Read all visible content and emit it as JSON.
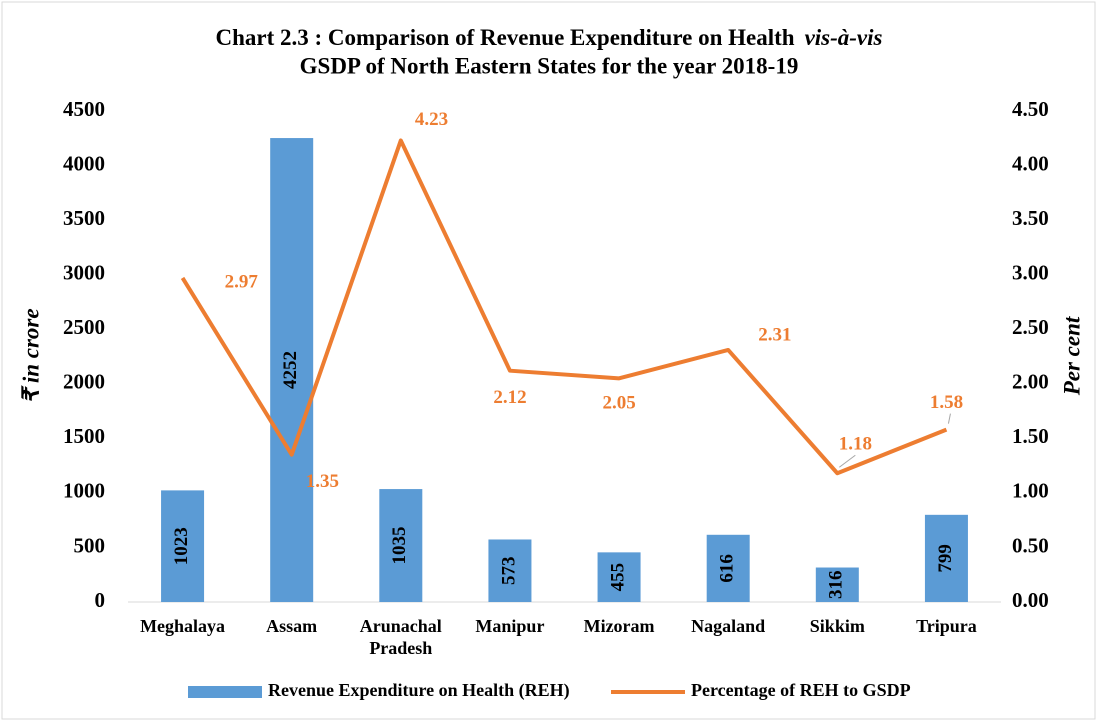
{
  "chart_data": {
    "type": "bar-line",
    "title": [
      "Chart 2.3 : Comparison of Revenue Expenditure on Health",
      "vis-à-vis",
      "GSDP of North Eastern States for the year 2018-19"
    ],
    "ylabel": "₹ in crore",
    "y2label": "Per cent",
    "categories": [
      "Meghalaya",
      "Assam",
      "Arunachal Pradesh",
      "Manipur",
      "Mizoram",
      "Nagaland",
      "Sikkim",
      "Tripura"
    ],
    "series": [
      {
        "name": "Revenue Expenditure on Health (REH)",
        "type": "bar",
        "color": "#5b9bd5",
        "values": [
          1023,
          4252,
          1035,
          573,
          455,
          616,
          316,
          799
        ]
      },
      {
        "name": "Percentage of REH to GSDP",
        "type": "line",
        "axis": "y2",
        "color": "#ed7d31",
        "values": [
          2.97,
          1.35,
          4.23,
          2.12,
          2.05,
          2.31,
          1.18,
          1.58
        ]
      }
    ],
    "ylim": [
      0,
      4500
    ],
    "yticks": [
      0,
      500,
      1000,
      1500,
      2000,
      2500,
      3000,
      3500,
      4000,
      4500
    ],
    "y2lim": [
      0,
      4.5
    ],
    "y2ticks": [
      {
        "value": 0,
        "label": "0.00"
      },
      {
        "value": 0.5,
        "label": "0.50"
      },
      {
        "value": 1,
        "label": "1.00"
      },
      {
        "value": 1.5,
        "label": "1.50"
      },
      {
        "value": 2,
        "label": "2.00"
      },
      {
        "value": 2.5,
        "label": "2.50"
      },
      {
        "value": 3,
        "label": "3.00"
      },
      {
        "value": 3.5,
        "label": "3.50"
      },
      {
        "value": 4,
        "label": "4.00"
      },
      {
        "value": 4.5,
        "label": "4.50"
      }
    ],
    "legend": "bottom"
  }
}
